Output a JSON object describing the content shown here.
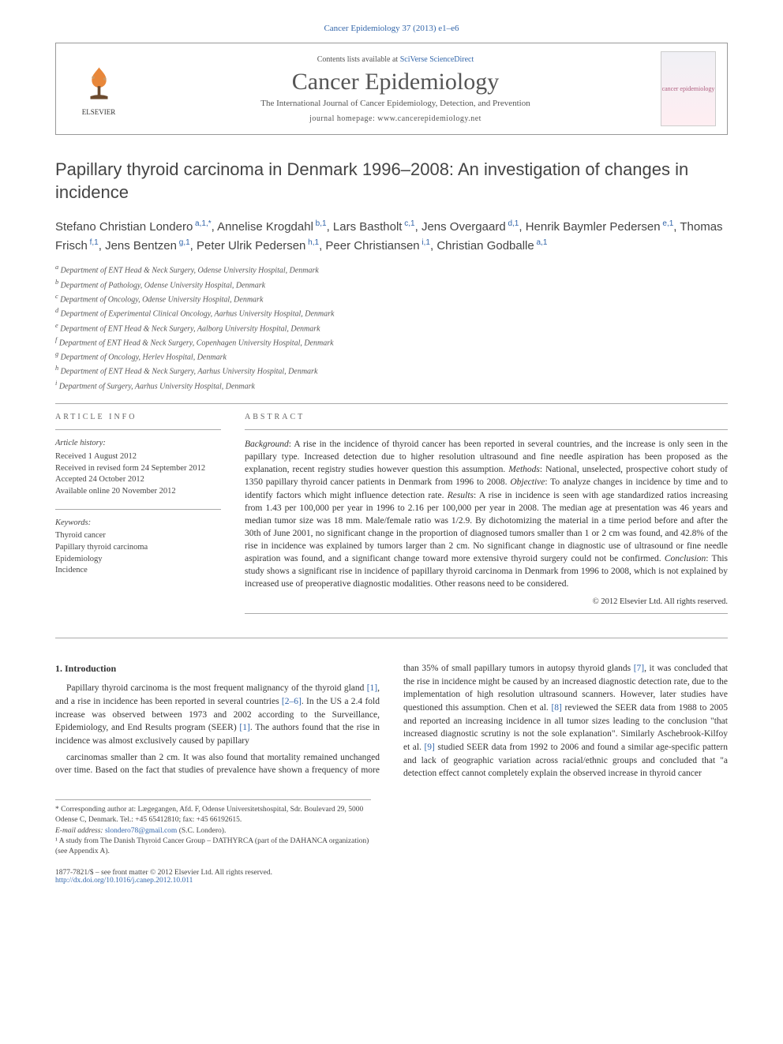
{
  "header_small": "Cancer Epidemiology 37 (2013) e1–e6",
  "masthead": {
    "contents_prefix": "Contents lists available at ",
    "contents_link": "SciVerse ScienceDirect",
    "journal": "Cancer Epidemiology",
    "subtitle": "The International Journal of Cancer Epidemiology, Detection, and Prevention",
    "homepage_prefix": "journal homepage: ",
    "homepage": "www.cancerepidemiology.net",
    "publisher": "ELSEVIER",
    "cover_text": "cancer epidemiology"
  },
  "title": "Papillary thyroid carcinoma in Denmark 1996–2008: An investigation of changes in incidence",
  "authors_html": "Stefano Christian Londero<sup> a,1,*</sup>, Annelise Krogdahl<sup> b,1</sup>, Lars Bastholt<sup> c,1</sup>, Jens Overgaard<sup> d,1</sup>, Henrik Baymler Pedersen<sup> e,1</sup>, Thomas Frisch<sup> f,1</sup>, Jens Bentzen<sup> g,1</sup>, Peter Ulrik Pedersen<sup> h,1</sup>, Peer Christiansen<sup> i,1</sup>, Christian Godballe<sup> a,1</sup>",
  "affiliations": [
    {
      "key": "a",
      "text": "Department of ENT Head & Neck Surgery, Odense University Hospital, Denmark"
    },
    {
      "key": "b",
      "text": "Department of Pathology, Odense University Hospital, Denmark"
    },
    {
      "key": "c",
      "text": "Department of Oncology, Odense University Hospital, Denmark"
    },
    {
      "key": "d",
      "text": "Department of Experimental Clinical Oncology, Aarhus University Hospital, Denmark"
    },
    {
      "key": "e",
      "text": "Department of ENT Head & Neck Surgery, Aalborg University Hospital, Denmark"
    },
    {
      "key": "f",
      "text": "Department of ENT Head & Neck Surgery, Copenhagen University Hospital, Denmark"
    },
    {
      "key": "g",
      "text": "Department of Oncology, Herlev Hospital, Denmark"
    },
    {
      "key": "h",
      "text": "Department of ENT Head & Neck Surgery, Aarhus University Hospital, Denmark"
    },
    {
      "key": "i",
      "text": "Department of Surgery, Aarhus University Hospital, Denmark"
    }
  ],
  "article_info": {
    "heading": "ARTICLE INFO",
    "history_label": "Article history:",
    "history": [
      "Received 1 August 2012",
      "Received in revised form 24 September 2012",
      "Accepted 24 October 2012",
      "Available online 20 November 2012"
    ],
    "keywords_label": "Keywords:",
    "keywords": [
      "Thyroid cancer",
      "Papillary thyroid carcinoma",
      "Epidemiology",
      "Incidence"
    ]
  },
  "abstract": {
    "heading": "ABSTRACT",
    "text": "Background: A rise in the incidence of thyroid cancer has been reported in several countries, and the increase is only seen in the papillary type. Increased detection due to higher resolution ultrasound and fine needle aspiration has been proposed as the explanation, recent registry studies however question this assumption. Methods: National, unselected, prospective cohort study of 1350 papillary thyroid cancer patients in Denmark from 1996 to 2008. Objective: To analyze changes in incidence by time and to identify factors which might influence detection rate. Results: A rise in incidence is seen with age standardized ratios increasing from 1.43 per 100,000 per year in 1996 to 2.16 per 100,000 per year in 2008. The median age at presentation was 46 years and median tumor size was 18 mm. Male/female ratio was 1/2.9. By dichotomizing the material in a time period before and after the 30th of June 2001, no significant change in the proportion of diagnosed tumors smaller than 1 or 2 cm was found, and 42.8% of the rise in incidence was explained by tumors larger than 2 cm. No significant change in diagnostic use of ultrasound or fine needle aspiration was found, and a significant change toward more extensive thyroid surgery could not be confirmed. Conclusion: This study shows a significant rise in incidence of papillary thyroid carcinoma in Denmark from 1996 to 2008, which is not explained by increased use of preoperative diagnostic modalities. Other reasons need to be considered.",
    "copyright": "© 2012 Elsevier Ltd. All rights reserved."
  },
  "intro": {
    "heading": "1. Introduction",
    "p1": "Papillary thyroid carcinoma is the most frequent malignancy of the thyroid gland [1], and a rise in incidence has been reported in several countries [2–6]. In the US a 2.4 fold increase was observed between 1973 and 2002 according to the Surveillance, Epidemiology, and End Results program (SEER) [1]. The authors found that the rise in incidence was almost exclusively caused by papillary",
    "p2": "carcinomas smaller than 2 cm. It was also found that mortality remained unchanged over time. Based on the fact that studies of prevalence have shown a frequency of more than 35% of small papillary tumors in autopsy thyroid glands [7], it was concluded that the rise in incidence might be caused by an increased diagnostic detection rate, due to the implementation of high resolution ultrasound scanners. However, later studies have questioned this assumption. Chen et al. [8] reviewed the SEER data from 1988 to 2005 and reported an increasing incidence in all tumor sizes leading to the conclusion \"that increased diagnostic scrutiny is not the sole explanation\". Similarly Aschebrook-Kilfoy et al. [9] studied SEER data from 1992 to 2006 and found a similar age-specific pattern and lack of geographic variation across racial/ethnic groups and concluded that \"a detection effect cannot completely explain the observed increase in thyroid cancer"
  },
  "footnotes": {
    "corresponding": "* Corresponding author at: Lægegangen, Afd. F, Odense Universitetshospital, Sdr. Boulevard 29, 5000 Odense C, Denmark. Tel.: +45 65412810; fax: +45 66192615.",
    "email_label": "E-mail address: ",
    "email": "slondero78@gmail.com",
    "email_suffix": " (S.C. Londero).",
    "note1": "¹ A study from The Danish Thyroid Cancer Group – DATHYRCA (part of the DAHANCA organization) (see Appendix A)."
  },
  "footer": {
    "issn": "1877-7821/$ – see front matter © 2012 Elsevier Ltd. All rights reserved.",
    "doi": "http://dx.doi.org/10.1016/j.canep.2012.10.011"
  },
  "colors": {
    "link": "#3366aa",
    "text": "#333333",
    "muted": "#555555",
    "border": "#999999"
  }
}
